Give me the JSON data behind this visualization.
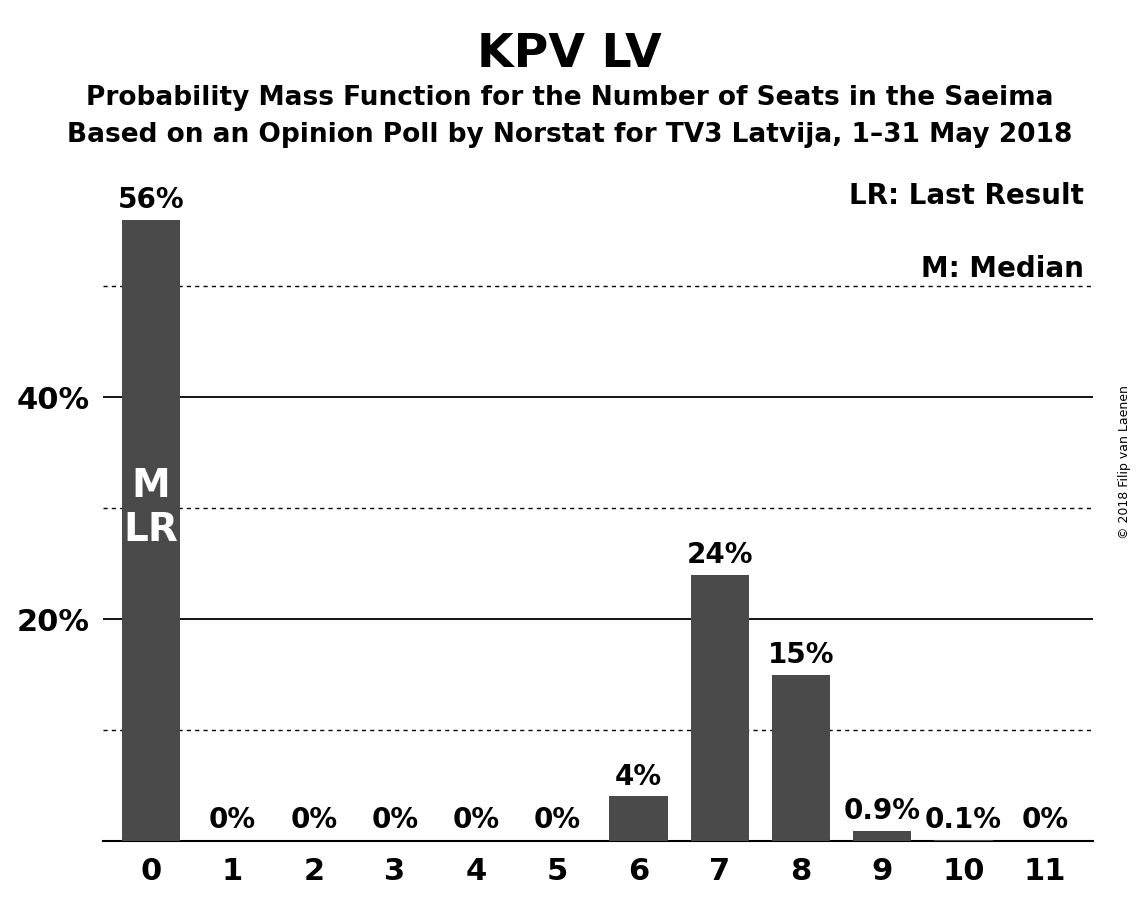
{
  "title": "KPV LV",
  "subtitle1": "Probability Mass Function for the Number of Seats in the Saeima",
  "subtitle2": "Based on an Opinion Poll by Norstat for TV3 Latvija, 1–31 May 2018",
  "copyright": "© 2018 Filip van Laenen",
  "categories": [
    0,
    1,
    2,
    3,
    4,
    5,
    6,
    7,
    8,
    9,
    10,
    11
  ],
  "values": [
    56,
    0,
    0,
    0,
    0,
    0,
    4,
    24,
    15,
    0.9,
    0.1,
    0
  ],
  "bar_color": "#4a4a4a",
  "label_texts": [
    "56%",
    "0%",
    "0%",
    "0%",
    "0%",
    "0%",
    "4%",
    "24%",
    "15%",
    "0.9%",
    "0.1%",
    "0%"
  ],
  "ylim": [
    0,
    60
  ],
  "solid_gridlines": [
    20,
    40
  ],
  "dotted_gridlines": [
    10,
    30,
    50
  ],
  "legend_text1": "LR: Last Result",
  "legend_text2": "M: Median",
  "bar_label_fontsize": 20,
  "title_fontsize": 34,
  "subtitle_fontsize": 19,
  "tick_fontsize": 22,
  "legend_fontsize": 20,
  "inbar_label_fontsize": 28,
  "background_color": "#ffffff",
  "bar_width": 0.72
}
